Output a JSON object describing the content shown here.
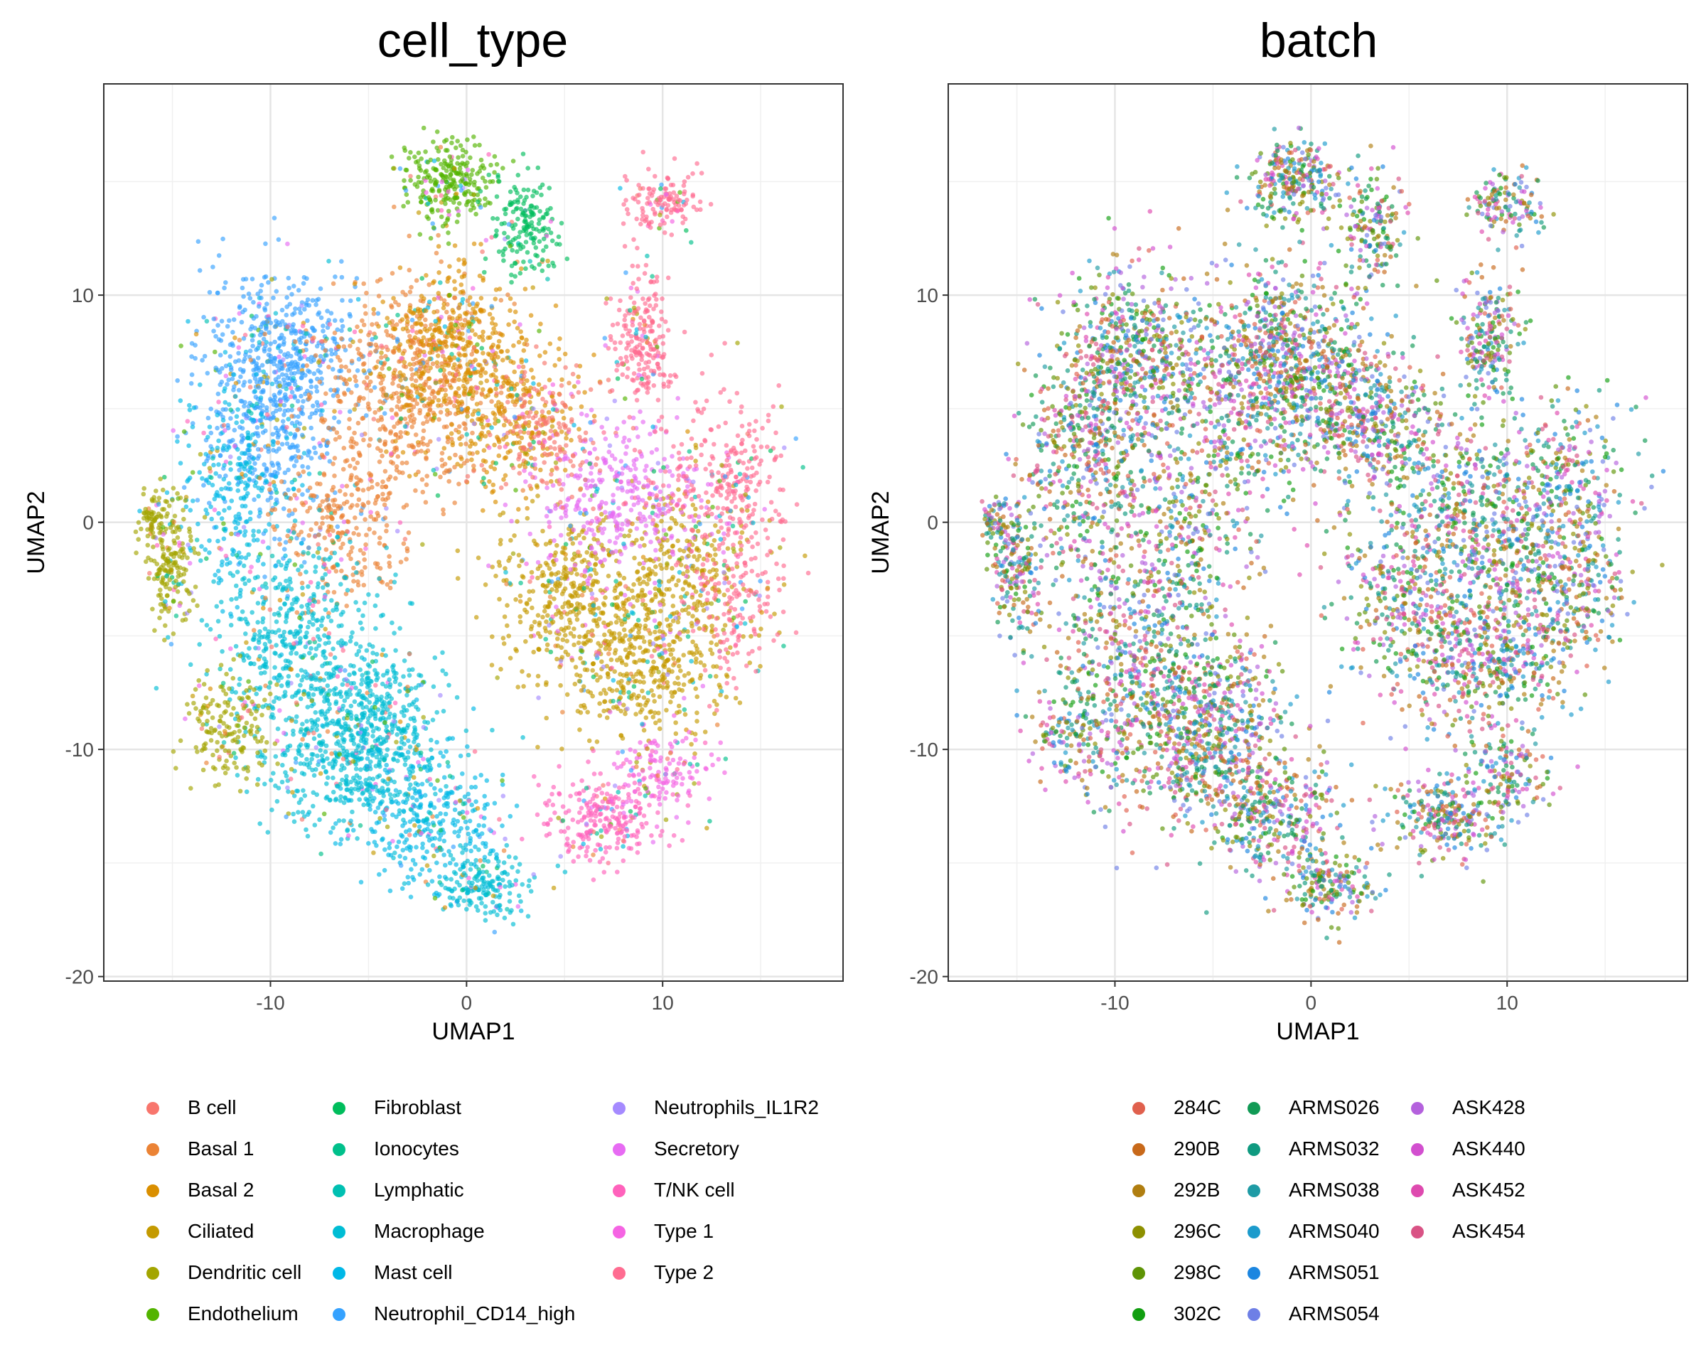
{
  "chart_data": [
    {
      "type": "scatter",
      "title": "cell_type",
      "xlabel": "UMAP1",
      "ylabel": "UMAP2",
      "xlim": [
        -18.5,
        19.2
      ],
      "ylim": [
        -20.2,
        19.3
      ],
      "xticks": [
        -10,
        0,
        10
      ],
      "yticks": [
        -20,
        -10,
        0,
        10
      ],
      "grid": true,
      "legend_position": "bottom",
      "legend": [
        {
          "label": "B cell",
          "color": "#F8766D"
        },
        {
          "label": "Basal 1",
          "color": "#EB8335"
        },
        {
          "label": "Basal 2",
          "color": "#DA8F00"
        },
        {
          "label": "Ciliated",
          "color": "#C49A00"
        },
        {
          "label": "Dendritic cell",
          "color": "#A3A500"
        },
        {
          "label": "Endothelium",
          "color": "#53B400"
        },
        {
          "label": "Fibroblast",
          "color": "#00BD5C"
        },
        {
          "label": "Ionocytes",
          "color": "#00C08B"
        },
        {
          "label": "Lymphatic",
          "color": "#00C0B2"
        },
        {
          "label": "Macrophage",
          "color": "#00BDD4"
        },
        {
          "label": "Mast cell",
          "color": "#00B8E7"
        },
        {
          "label": "Neutrophil_CD14_high",
          "color": "#35A2FF"
        },
        {
          "label": "Neutrophils_IL1R2",
          "color": "#A58AFF"
        },
        {
          "label": "Secretory",
          "color": "#E76BF3"
        },
        {
          "label": "T/NK cell",
          "color": "#FF62BC"
        },
        {
          "label": "Type 1",
          "color": "#F564E3"
        },
        {
          "label": "Type 2",
          "color": "#FF6C91"
        }
      ]
    },
    {
      "type": "scatter",
      "title": "batch",
      "xlabel": "UMAP1",
      "ylabel": "UMAP2",
      "xlim": [
        -18.5,
        19.2
      ],
      "ylim": [
        -20.2,
        19.3
      ],
      "xticks": [
        -10,
        0,
        10
      ],
      "yticks": [
        -20,
        -10,
        0,
        10
      ],
      "grid": true,
      "legend_position": "bottom",
      "legend": [
        {
          "label": "284C",
          "color": "#E0604D"
        },
        {
          "label": "290B",
          "color": "#C8691A"
        },
        {
          "label": "292B",
          "color": "#B07E10"
        },
        {
          "label": "296C",
          "color": "#8D9000"
        },
        {
          "label": "298C",
          "color": "#5E9405"
        },
        {
          "label": "302C",
          "color": "#119E10"
        },
        {
          "label": "ARMS026",
          "color": "#119A55"
        },
        {
          "label": "ARMS032",
          "color": "#0F9A80"
        },
        {
          "label": "ARMS038",
          "color": "#1E9BA5"
        },
        {
          "label": "ARMS040",
          "color": "#1C9BCC"
        },
        {
          "label": "ARMS051",
          "color": "#1C86E0"
        },
        {
          "label": "ARMS054",
          "color": "#6E7FE6"
        },
        {
          "label": "ASK428",
          "color": "#B461DD"
        },
        {
          "label": "ASK440",
          "color": "#D24FCF"
        },
        {
          "label": "ASK452",
          "color": "#DE4AAF"
        },
        {
          "label": "ASK454",
          "color": "#D95385"
        }
      ]
    }
  ]
}
